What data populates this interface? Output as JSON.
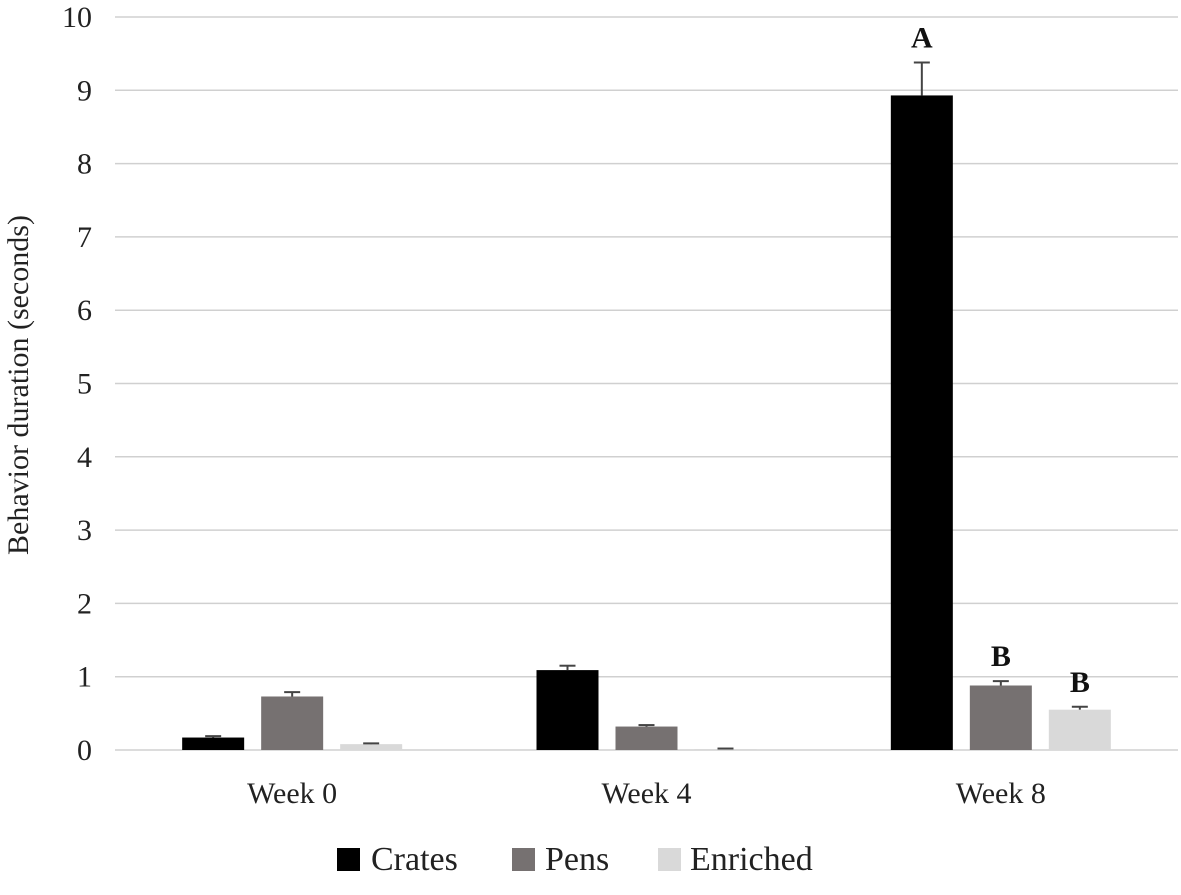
{
  "chart_data": {
    "type": "bar",
    "title": "",
    "xlabel": "",
    "ylabel": "Behavior duration (seconds)",
    "ylim": [
      0,
      10
    ],
    "yticks": [
      "0",
      "1",
      "2",
      "3",
      "4",
      "5",
      "6",
      "7",
      "8",
      "9",
      "10"
    ],
    "grid": true,
    "legend_position": "bottom",
    "categories": [
      "Week 0",
      "Week 4",
      "Week 8"
    ],
    "series": [
      {
        "name": "Crates",
        "color": "#000000",
        "values": [
          0.17,
          1.09,
          8.93
        ],
        "errors": [
          0.02,
          0.06,
          0.45
        ],
        "sig_labels": [
          "",
          "",
          "A"
        ]
      },
      {
        "name": "Pens",
        "color": "#767171",
        "values": [
          0.73,
          0.32,
          0.88
        ],
        "errors": [
          0.06,
          0.02,
          0.06
        ],
        "sig_labels": [
          "",
          "",
          "B"
        ]
      },
      {
        "name": "Enriched",
        "color": "#d9d9d9",
        "values": [
          0.08,
          0.01,
          0.55
        ],
        "errors": [
          0.01,
          0.01,
          0.04
        ],
        "sig_labels": [
          "",
          "",
          "B"
        ]
      }
    ]
  }
}
